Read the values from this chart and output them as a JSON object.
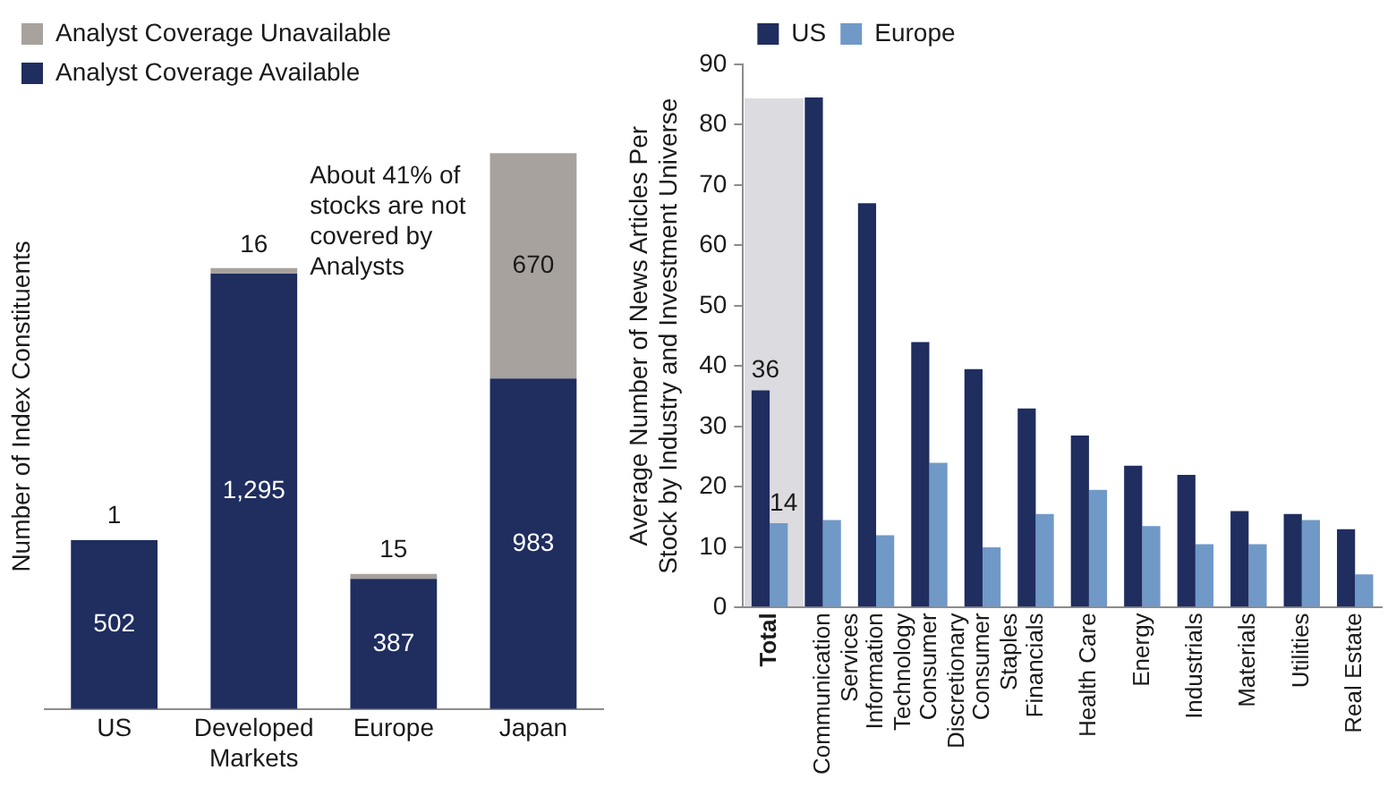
{
  "chart_data": [
    {
      "type": "bar",
      "stacked": true,
      "categories": [
        "US",
        "Developed Markets",
        "Europe",
        "Japan"
      ],
      "ylabel": "Number of Index Constituents",
      "series": [
        {
          "name": "Analyst Coverage Available",
          "color": "#1f2d5f",
          "values": [
            502,
            1295,
            387,
            983
          ],
          "value_labels": [
            "502",
            "1,295",
            "387",
            "983"
          ]
        },
        {
          "name": "Analyst Coverage Unavailable",
          "color": "#a7a29d",
          "values": [
            1,
            16,
            15,
            670
          ],
          "value_labels": [
            "1",
            "16",
            "15",
            "670"
          ]
        }
      ],
      "annotations": [
        "About 41% of stocks are not covered by Analysts"
      ],
      "legend": "top left",
      "tick_labels": "x",
      "grid": false
    },
    {
      "type": "bar",
      "categories": [
        "Total",
        "Communication Services",
        "Information Technology",
        "Consumer Discretionary",
        "Consumer Staples",
        "Financials",
        "Health Care",
        "Energy",
        "Industrials",
        "Materials",
        "Utilities",
        "Real Estate"
      ],
      "ylabel": "Average Number of News Articles Per Stock by Industry and Investment Universe",
      "ylim": [
        0,
        90
      ],
      "yticks": [
        0,
        10,
        20,
        30,
        40,
        50,
        60,
        70,
        80,
        90
      ],
      "series": [
        {
          "name": "US",
          "color": "#1f2d5f",
          "values": [
            36,
            84.5,
            67,
            44,
            39.5,
            33,
            28.5,
            23.5,
            22,
            16,
            15.5,
            13
          ],
          "value_labels": [
            "36",
            null,
            null,
            null,
            null,
            null,
            null,
            null,
            null,
            null,
            null,
            null
          ]
        },
        {
          "name": "Europe",
          "color": "#7099c8",
          "values": [
            14,
            14.5,
            12,
            24,
            10,
            15.5,
            19.5,
            13.5,
            10.5,
            10.5,
            14.5,
            5.5
          ],
          "value_labels": [
            "14",
            null,
            null,
            null,
            null,
            null,
            null,
            null,
            null,
            null,
            null,
            null
          ]
        }
      ],
      "legend": "top left",
      "grid": false
    }
  ]
}
